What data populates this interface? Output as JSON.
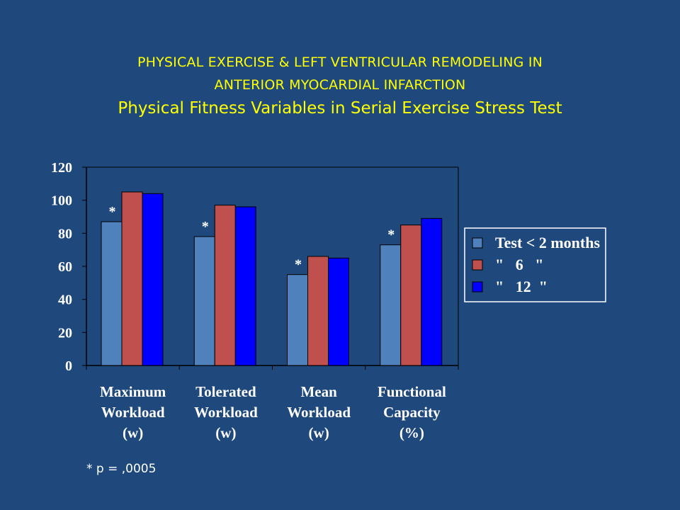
{
  "colors": {
    "background": "#1f497d",
    "title": "#ffff00",
    "series": [
      "#4f81bd",
      "#c0504d",
      "#0000ff"
    ]
  },
  "title": {
    "line1": "PHYSICAL EXERCISE & LEFT VENTRICULAR REMODELING IN",
    "line2": "ANTERIOR MYOCARDIAL INFARCTION",
    "subtitle": "Physical Fitness Variables in Serial Exercise Stress Test"
  },
  "footnote": "* p = ,0005",
  "chart_data": {
    "type": "bar",
    "categories": [
      [
        "Maximum",
        "Workload",
        "(w)"
      ],
      [
        "Tolerated",
        "Workload",
        "(w)"
      ],
      [
        "Mean",
        "Workload",
        "(w)"
      ],
      [
        "Functional",
        "Capacity",
        "(%)"
      ]
    ],
    "series": [
      {
        "name": "Test < 2 months",
        "values": [
          87,
          78,
          55,
          73
        ]
      },
      {
        "name": "\"   6   \"",
        "values": [
          105,
          97,
          66,
          85
        ]
      },
      {
        "name": "\"   12  \"",
        "values": [
          104,
          96,
          65,
          89
        ]
      }
    ],
    "annotations": [
      "*",
      "*",
      "*",
      "*"
    ],
    "yticks": [
      0,
      20,
      40,
      60,
      80,
      100,
      120
    ],
    "ylim": [
      0,
      120
    ],
    "grid": false,
    "legend": "right"
  }
}
